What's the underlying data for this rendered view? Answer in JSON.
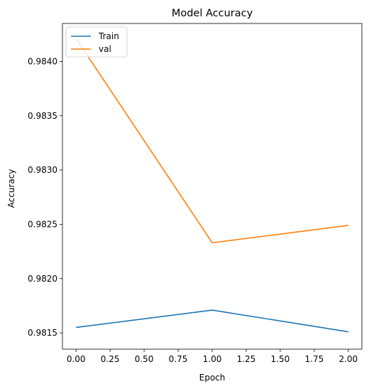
{
  "chart_data": {
    "type": "line",
    "title": "Model Accuracy",
    "xlabel": "Epoch",
    "ylabel": "Accuracy",
    "x": [
      0,
      1,
      2
    ],
    "xlim": [
      -0.1,
      2.1
    ],
    "ylim": [
      0.98135,
      0.98435
    ],
    "xticks": [
      0.0,
      0.25,
      0.5,
      0.75,
      1.0,
      1.25,
      1.5,
      1.75,
      2.0
    ],
    "xtick_labels": [
      "0.00",
      "0.25",
      "0.50",
      "0.75",
      "1.00",
      "1.25",
      "1.50",
      "1.75",
      "2.00"
    ],
    "yticks": [
      0.9815,
      0.982,
      0.9825,
      0.983,
      0.9835,
      0.984
    ],
    "ytick_labels": [
      "0.9815",
      "0.9820",
      "0.9825",
      "0.9830",
      "0.9835",
      "0.9840"
    ],
    "series": [
      {
        "name": "Train",
        "color": "#1f77b4",
        "values": [
          0.98155,
          0.98171,
          0.98151
        ]
      },
      {
        "name": "val",
        "color": "#ff7f0e",
        "values": [
          0.98421,
          0.98233,
          0.98249
        ]
      }
    ],
    "legend": "upper-left",
    "grid": false
  }
}
